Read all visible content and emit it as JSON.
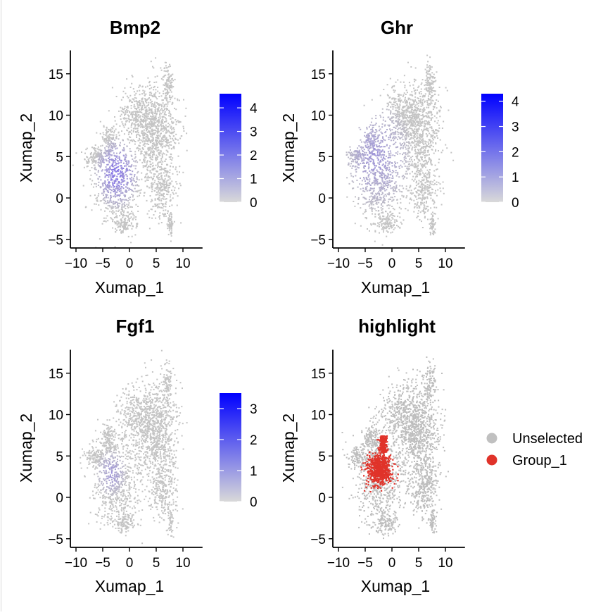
{
  "chart_data": [
    {
      "type": "scatter",
      "title": "Bmp2",
      "xlabel": "Xumap_1",
      "ylabel": "Xumap_2",
      "xticks": [
        -10,
        -5,
        0,
        5,
        10
      ],
      "xtick_labels": [
        "−10",
        "−5",
        "0",
        "5",
        "10"
      ],
      "yticks": [
        -5,
        0,
        5,
        10,
        15
      ],
      "ytick_labels": [
        "−5",
        "0",
        "5",
        "10",
        "15"
      ],
      "xlim": [
        -11,
        13
      ],
      "ylim": [
        -6,
        18
      ],
      "colorbar": {
        "min": 0,
        "max": 4.6,
        "ticks": [
          0,
          1,
          2,
          3,
          4
        ],
        "low_color": "#d9d9d9",
        "high_color": "#0000ff"
      },
      "expression_center": [
        -2.5,
        3
      ],
      "expression_spread": 4.5,
      "expression_level": 0.8
    },
    {
      "type": "scatter",
      "title": "Ghr",
      "xlabel": "Xumap_1",
      "ylabel": "Xumap_2",
      "xticks": [
        -10,
        -5,
        0,
        5,
        10
      ],
      "xtick_labels": [
        "−10",
        "−5",
        "0",
        "5",
        "10"
      ],
      "yticks": [
        -5,
        0,
        5,
        10,
        15
      ],
      "ytick_labels": [
        "−5",
        "0",
        "5",
        "10",
        "15"
      ],
      "xlim": [
        -11,
        13
      ],
      "ylim": [
        -6,
        18
      ],
      "colorbar": {
        "min": 0,
        "max": 4.3,
        "ticks": [
          0,
          1,
          2,
          3,
          4
        ],
        "low_color": "#d9d9d9",
        "high_color": "#0000ff"
      },
      "expression_center": [
        -3,
        5
      ],
      "expression_spread": 7,
      "expression_level": 0.45
    },
    {
      "type": "scatter",
      "title": "Fgf1",
      "xlabel": "Xumap_1",
      "ylabel": "Xumap_2",
      "xticks": [
        -10,
        -5,
        0,
        5,
        10
      ],
      "xtick_labels": [
        "−10",
        "−5",
        "0",
        "5",
        "10"
      ],
      "yticks": [
        -5,
        0,
        5,
        10,
        15
      ],
      "ytick_labels": [
        "−5",
        "0",
        "5",
        "10",
        "15"
      ],
      "xlim": [
        -11,
        13
      ],
      "ylim": [
        -6,
        18
      ],
      "colorbar": {
        "min": 0,
        "max": 3.5,
        "ticks": [
          0,
          1,
          2,
          3
        ],
        "low_color": "#d9d9d9",
        "high_color": "#0000ff"
      },
      "expression_center": [
        -3.5,
        3
      ],
      "expression_spread": 3,
      "expression_level": 0.45
    },
    {
      "type": "scatter",
      "title": "highlight",
      "xlabel": "Xumap_1",
      "ylabel": "Xumap_2",
      "xticks": [
        -10,
        -5,
        0,
        5,
        10
      ],
      "xtick_labels": [
        "−10",
        "−5",
        "0",
        "5",
        "10"
      ],
      "yticks": [
        -5,
        0,
        5,
        10,
        15
      ],
      "ytick_labels": [
        "−5",
        "0",
        "5",
        "10",
        "15"
      ],
      "xlim": [
        -11,
        13
      ],
      "ylim": [
        -6,
        18
      ],
      "legend": [
        {
          "name": "Unselected",
          "color": "#c0c0c0"
        },
        {
          "name": "Group_1",
          "color": "#e0332a"
        }
      ],
      "highlight_center": [
        -2.5,
        3.5
      ],
      "highlight_extent": [
        -4.5,
        0,
        1.5,
        7.5
      ]
    }
  ]
}
